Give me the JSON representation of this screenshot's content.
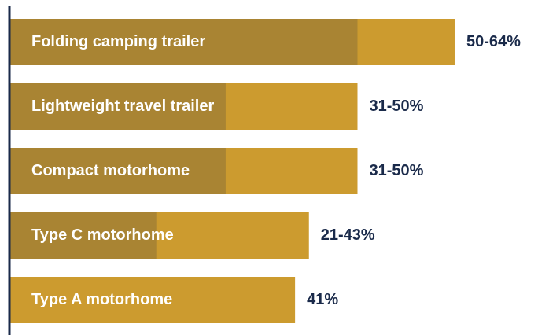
{
  "chart_data": {
    "type": "bar",
    "orientation": "horizontal",
    "categories": [
      "Folding camping trailer",
      "Lightweight travel trailer",
      "Compact motorhome",
      "Type C motorhome",
      "Type A motorhome"
    ],
    "series": [
      {
        "name": "low",
        "color": "#a98433",
        "values": [
          50,
          31,
          31,
          21,
          null
        ]
      },
      {
        "name": "high",
        "color": "#cc9b2f",
        "values": [
          64,
          50,
          50,
          43,
          41
        ]
      }
    ],
    "value_labels": [
      "50-64%",
      "31-50%",
      "31-50%",
      "21-43%",
      "41%"
    ],
    "xlim": [
      0,
      75
    ]
  }
}
